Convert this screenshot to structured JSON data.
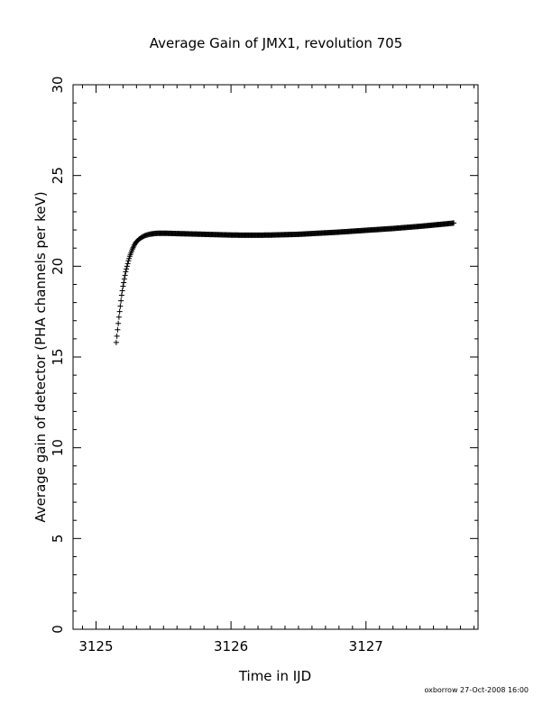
{
  "chart_data": {
    "type": "scatter",
    "title": "Average Gain of JMX1, revolution 705",
    "xlabel": "Time in IJD",
    "ylabel": "Average gain of detector (PHA channels per keV)",
    "xlim": [
      3124.83,
      3127.83
    ],
    "ylim": [
      0,
      30
    ],
    "xticks": [
      3125,
      3126,
      3127
    ],
    "yticks": [
      0,
      5,
      10,
      15,
      20,
      25,
      30
    ],
    "x_minor_step": 0.1,
    "y_minor_step": 1,
    "grid": false,
    "marker": "plus",
    "series": [
      {
        "points": [
          [
            3125.15,
            15.8
          ],
          [
            3125.16,
            16.5
          ],
          [
            3125.17,
            17.2
          ],
          [
            3125.18,
            17.8
          ],
          [
            3125.19,
            18.4
          ],
          [
            3125.2,
            18.9
          ],
          [
            3125.21,
            19.3
          ],
          [
            3125.22,
            19.7
          ],
          [
            3125.23,
            20.0
          ],
          [
            3125.24,
            20.3
          ],
          [
            3125.25,
            20.55
          ],
          [
            3125.26,
            20.75
          ],
          [
            3125.27,
            20.95
          ],
          [
            3125.28,
            21.1
          ],
          [
            3125.29,
            21.25
          ],
          [
            3125.3,
            21.35
          ],
          [
            3125.32,
            21.5
          ],
          [
            3125.34,
            21.6
          ],
          [
            3125.36,
            21.68
          ],
          [
            3125.38,
            21.73
          ],
          [
            3125.4,
            21.77
          ],
          [
            3125.43,
            21.8
          ],
          [
            3125.46,
            21.82
          ],
          [
            3125.5,
            21.82
          ],
          [
            3125.6,
            21.8
          ],
          [
            3125.7,
            21.78
          ],
          [
            3125.8,
            21.76
          ],
          [
            3125.9,
            21.74
          ],
          [
            3126.0,
            21.72
          ],
          [
            3126.1,
            21.71
          ],
          [
            3126.2,
            21.71
          ],
          [
            3126.3,
            21.72
          ],
          [
            3126.4,
            21.74
          ],
          [
            3126.5,
            21.76
          ],
          [
            3126.6,
            21.8
          ],
          [
            3126.7,
            21.84
          ],
          [
            3126.8,
            21.88
          ],
          [
            3126.9,
            21.93
          ],
          [
            3127.0,
            21.98
          ],
          [
            3127.1,
            22.03
          ],
          [
            3127.2,
            22.08
          ],
          [
            3127.3,
            22.14
          ],
          [
            3127.4,
            22.2
          ],
          [
            3127.5,
            22.27
          ],
          [
            3127.6,
            22.34
          ],
          [
            3127.65,
            22.38
          ]
        ]
      }
    ]
  },
  "footer": {
    "credit": "oxborrow 27-Oct-2008 16:00"
  }
}
